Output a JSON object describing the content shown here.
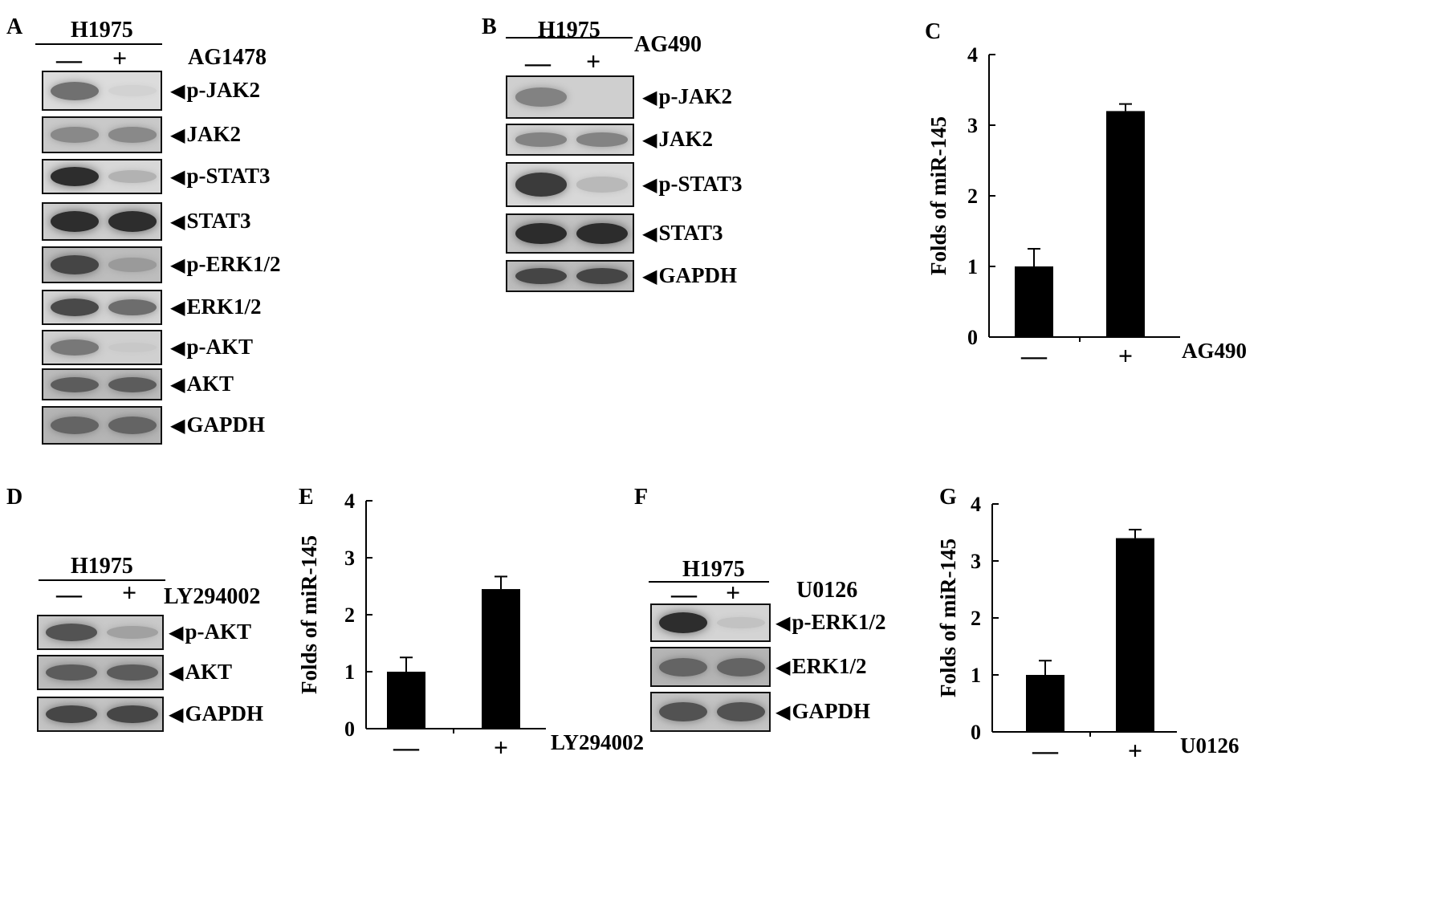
{
  "panels": {
    "A": {
      "letter": "A",
      "cell_line": "H1975",
      "treatment": "AG1478",
      "lanes": [
        "—",
        "+"
      ],
      "blots": [
        {
          "name": "p-JAK2",
          "lane1": 0.7,
          "lane2": 0.12,
          "bg": "#dcdcdc"
        },
        {
          "name": "JAK2",
          "lane1": 0.55,
          "lane2": 0.55,
          "bg": "#c9c9c9"
        },
        {
          "name": "p-STAT3",
          "lane1": 0.95,
          "lane2": 0.35,
          "bg": "#d8d8d8"
        },
        {
          "name": "STAT3",
          "lane1": 0.95,
          "lane2": 0.95,
          "bg": "#cfcfcf"
        },
        {
          "name": "p-ERK1/2",
          "lane1": 0.85,
          "lane2": 0.4,
          "bg": "#bdbdbd"
        },
        {
          "name": "ERK1/2",
          "lane1": 0.85,
          "lane2": 0.7,
          "bg": "#d4d4d4"
        },
        {
          "name": "p-AKT",
          "lane1": 0.65,
          "lane2": 0.1,
          "bg": "#d0d0d0"
        },
        {
          "name": "AKT",
          "lane1": 0.75,
          "lane2": 0.75,
          "bg": "#bcbcbc"
        },
        {
          "name": "GAPDH",
          "lane1": 0.7,
          "lane2": 0.7,
          "bg": "#b5b5b5"
        }
      ]
    },
    "B": {
      "letter": "B",
      "cell_line": "H1975",
      "treatment": "AG490",
      "lanes": [
        "—",
        "+"
      ],
      "blots": [
        {
          "name": "p-JAK2",
          "lane1": 0.6,
          "lane2": 0.0,
          "bg": "#cfcfcf"
        },
        {
          "name": "JAK2",
          "lane1": 0.6,
          "lane2": 0.6,
          "bg": "#d2d2d2"
        },
        {
          "name": "p-STAT3",
          "lane1": 0.9,
          "lane2": 0.3,
          "bg": "#d8d8d8"
        },
        {
          "name": "STAT3",
          "lane1": 0.95,
          "lane2": 0.95,
          "bg": "#c4c4c4"
        },
        {
          "name": "GAPDH",
          "lane1": 0.85,
          "lane2": 0.85,
          "bg": "#bdbdbd"
        }
      ]
    },
    "D": {
      "letter": "D",
      "cell_line": "H1975",
      "treatment": "LY294002",
      "lanes": [
        "—",
        "+"
      ],
      "blots": [
        {
          "name": "p-AKT",
          "lane1": 0.8,
          "lane2": 0.4,
          "bg": "#c9c9c9"
        },
        {
          "name": "AKT",
          "lane1": 0.75,
          "lane2": 0.75,
          "bg": "#bdbdbd"
        },
        {
          "name": "GAPDH",
          "lane1": 0.85,
          "lane2": 0.85,
          "bg": "#c4c4c4"
        }
      ]
    },
    "F": {
      "letter": "F",
      "cell_line": "H1975",
      "treatment": "U0126",
      "lanes": [
        "—",
        "+"
      ],
      "blots": [
        {
          "name": "p-ERK1/2",
          "lane1": 0.95,
          "lane2": 0.2,
          "bg": "#d4d4d4"
        },
        {
          "name": "ERK1/2",
          "lane1": 0.7,
          "lane2": 0.7,
          "bg": "#b5b5b5"
        },
        {
          "name": "GAPDH",
          "lane1": 0.8,
          "lane2": 0.8,
          "bg": "#c4c4c4"
        }
      ]
    }
  },
  "chart_data": [
    {
      "panel": "C",
      "type": "bar",
      "categories": [
        "—",
        "+"
      ],
      "treatment": "AG490",
      "values": [
        1.0,
        3.2
      ],
      "errors": [
        0.25,
        0.1
      ],
      "ylabel": "Folds of miR-145",
      "ylim": [
        0,
        4
      ],
      "yticks": [
        0,
        1,
        2,
        3,
        4
      ]
    },
    {
      "panel": "E",
      "type": "bar",
      "categories": [
        "—",
        "+"
      ],
      "treatment": "LY294002",
      "values": [
        1.0,
        2.45
      ],
      "errors": [
        0.25,
        0.22
      ],
      "ylabel": "Folds of miR-145",
      "ylim": [
        0,
        4
      ],
      "yticks": [
        0,
        1,
        2,
        3,
        4
      ]
    },
    {
      "panel": "G",
      "type": "bar",
      "categories": [
        "—",
        "+"
      ],
      "treatment": "U0126",
      "values": [
        1.0,
        3.4
      ],
      "errors": [
        0.25,
        0.15
      ],
      "ylabel": "Folds of miR-145",
      "ylim": [
        0,
        4
      ],
      "yticks": [
        0,
        1,
        2,
        3,
        4
      ]
    }
  ]
}
